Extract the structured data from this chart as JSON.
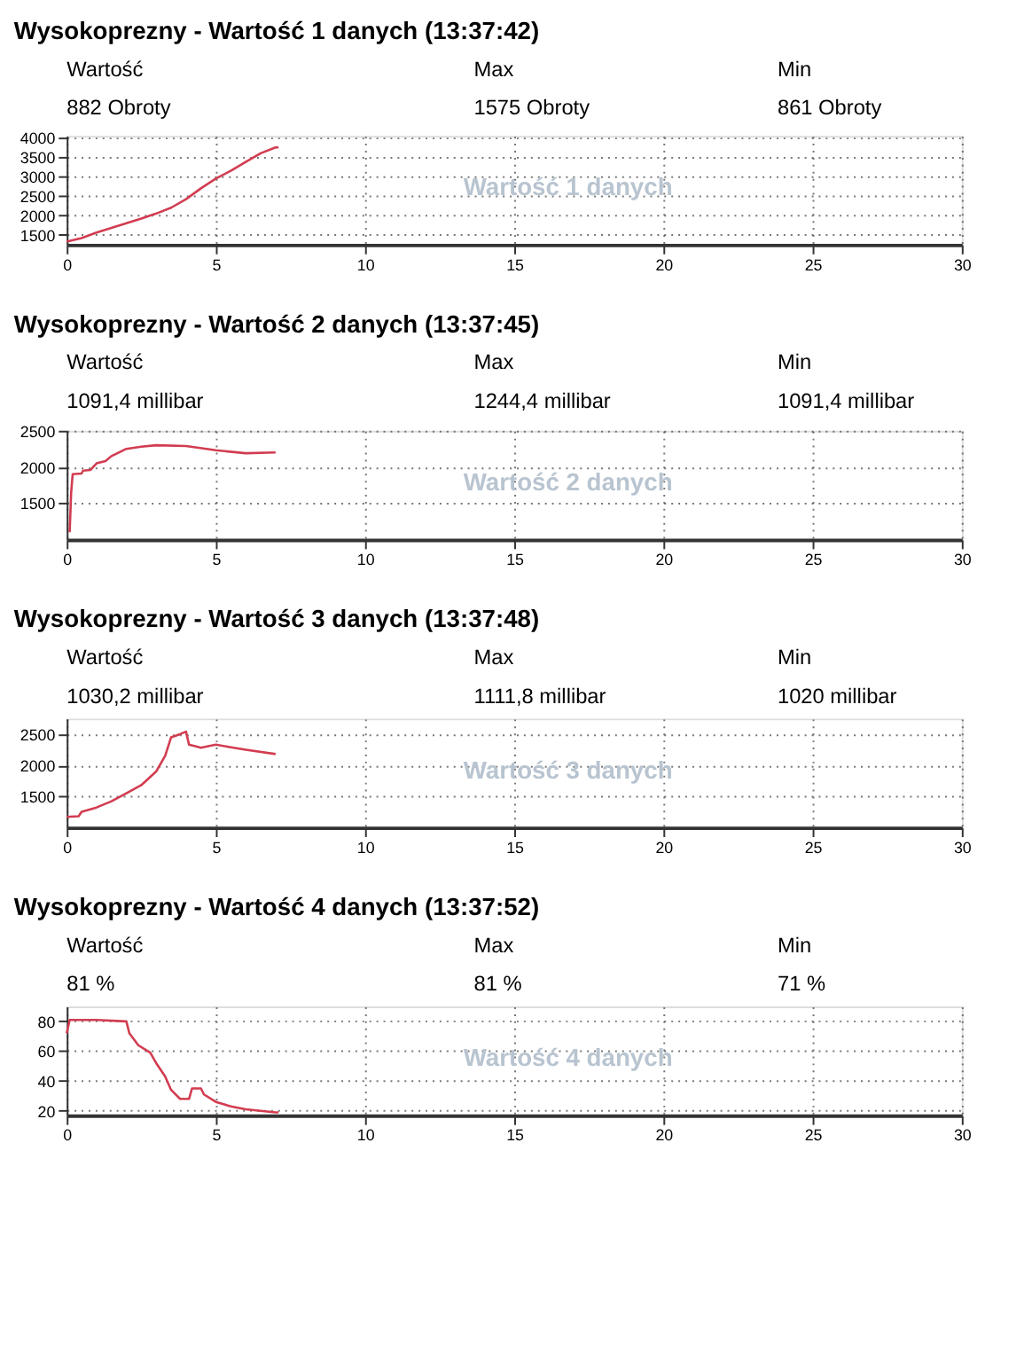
{
  "chart_data": [
    {
      "type": "line",
      "title": "Wysokoprezny - Wartość 1 danych (13:37:42)",
      "annotations": [
        "Wartość",
        "882 Obroty",
        "Max",
        "1575 Obroty",
        "Min",
        "861 Obroty",
        "Wartość 1 danych"
      ],
      "series": [
        {
          "color": "#d23c50",
          "x": [
            0,
            0.5,
            1,
            1.5,
            2,
            2.5,
            3,
            3.5,
            4,
            4.5,
            5,
            5.5,
            6,
            6.5,
            7,
            7.1
          ],
          "values": [
            1330,
            1420,
            1560,
            1680,
            1800,
            1920,
            2050,
            2200,
            2420,
            2700,
            2950,
            3150,
            3380,
            3600,
            3750,
            3750
          ]
        }
      ],
      "xlim": [
        0,
        30
      ],
      "xticks": [
        0,
        5,
        10,
        15,
        20,
        25,
        30
      ],
      "ylim": [
        1250,
        4050
      ],
      "yticks": [
        1500,
        2000,
        2500,
        3000,
        3500,
        4000
      ],
      "grid": true,
      "line_style": "solid",
      "marker": "none"
    },
    {
      "type": "line",
      "title": "Wysokoprezny - Wartość 2 danych (13:37:45)",
      "annotations": [
        "Wartość",
        "1091,4 millibar",
        "Max",
        "1244,4 millibar",
        "Min",
        "1091,4 millibar",
        "Wartość 2 danych"
      ],
      "series": [
        {
          "color": "#d23c50",
          "x": [
            0.1,
            0.15,
            0.2,
            0.5,
            0.55,
            0.8,
            1,
            1.3,
            1.5,
            2,
            2.5,
            3,
            4,
            5,
            6,
            7
          ],
          "values": [
            1100,
            1650,
            1900,
            1910,
            1950,
            1960,
            2050,
            2080,
            2150,
            2250,
            2280,
            2300,
            2290,
            2230,
            2190,
            2200
          ]
        }
      ],
      "xlim": [
        0,
        30
      ],
      "xticks": [
        0,
        5,
        10,
        15,
        20,
        25,
        30
      ],
      "ylim": [
        1000,
        2500
      ],
      "yticks": [
        1500,
        2000,
        2500
      ],
      "grid": true,
      "line_style": "solid",
      "marker": "none"
    },
    {
      "type": "line",
      "title": "Wysokoprezny - Wartość 3 danych (13:37:48)",
      "annotations": [
        "Wartość",
        "1030,2 millibar",
        "Max",
        "1111,8 millibar",
        "Min",
        "1020 millibar",
        "Wartość 3 danych"
      ],
      "series": [
        {
          "color": "#d23c50",
          "x": [
            0,
            0.4,
            0.5,
            1,
            1.5,
            2,
            2.5,
            3,
            3.3,
            3.5,
            3.8,
            4,
            4.1,
            4.5,
            5,
            5.5,
            6,
            7
          ],
          "values": [
            1170,
            1180,
            1250,
            1320,
            1420,
            1550,
            1680,
            1900,
            2150,
            2450,
            2500,
            2540,
            2330,
            2280,
            2330,
            2290,
            2250,
            2180
          ]
        }
      ],
      "xlim": [
        0,
        30
      ],
      "xticks": [
        0,
        5,
        10,
        15,
        20,
        25,
        30
      ],
      "ylim": [
        1000,
        2750
      ],
      "yticks": [
        1500,
        2000,
        2500
      ],
      "grid": true,
      "line_style": "solid",
      "marker": "none"
    },
    {
      "type": "line",
      "title": "Wysokoprezny - Wartość 4 danych (13:37:52)",
      "annotations": [
        "Wartość",
        "81 %",
        "Max",
        "81 %",
        "Min",
        "71 %",
        "Wartość 4 danych"
      ],
      "series": [
        {
          "color": "#d23c50",
          "x": [
            0,
            0.1,
            1,
            2,
            2.1,
            2.4,
            2.8,
            3,
            3.3,
            3.5,
            3.8,
            4.1,
            4.2,
            4.5,
            4.6,
            5,
            5.5,
            6,
            7,
            7.1
          ],
          "values": [
            72,
            81,
            81,
            80,
            72,
            64,
            59,
            52,
            43,
            34,
            28,
            28,
            35,
            35,
            31,
            26,
            23,
            21,
            19,
            19
          ]
        }
      ],
      "xlim": [
        0,
        30
      ],
      "xticks": [
        0,
        5,
        10,
        15,
        20,
        25,
        30
      ],
      "ylim": [
        17,
        90
      ],
      "yticks": [
        20,
        40,
        60,
        80
      ],
      "grid": true,
      "line_style": "solid",
      "marker": "none"
    }
  ]
}
